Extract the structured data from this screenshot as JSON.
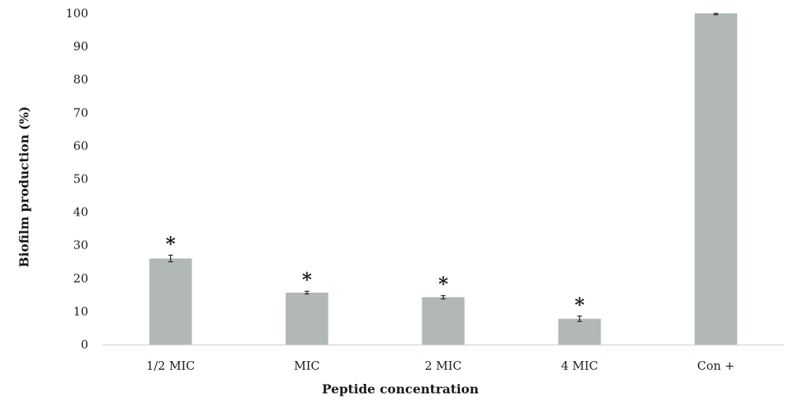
{
  "chart_data": {
    "type": "bar",
    "categories": [
      "1/2 MIC",
      "MIC",
      "2 MIC",
      "4 MIC",
      "Con +"
    ],
    "values": [
      26,
      15.7,
      14.3,
      7.8,
      100
    ],
    "errors": [
      1.0,
      0.4,
      0.5,
      0.8,
      0.4
    ],
    "significance": [
      "*",
      "*",
      "*",
      "*",
      ""
    ],
    "title": "",
    "xlabel": "Peptide concentration",
    "ylabel": "Biofilm production (%)",
    "ylim": [
      0,
      100
    ],
    "yticks": [
      0,
      10,
      20,
      30,
      40,
      50,
      60,
      70,
      80,
      90,
      100
    ],
    "grid": false,
    "legend": "none",
    "bar_color": "#b1b8b5",
    "axis_color": "#d9d9d9"
  }
}
